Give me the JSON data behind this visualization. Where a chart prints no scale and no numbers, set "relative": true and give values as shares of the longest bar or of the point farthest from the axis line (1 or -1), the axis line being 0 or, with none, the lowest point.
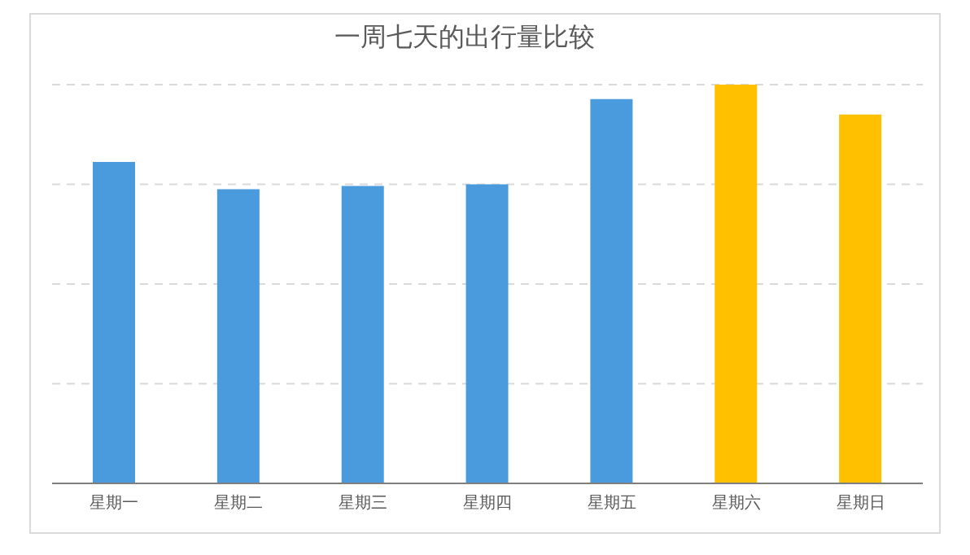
{
  "chart_data": {
    "type": "bar",
    "title": "一周七天的出行量比较",
    "categories": [
      "星期一",
      "星期二",
      "星期三",
      "星期四",
      "星期五",
      "星期六",
      "星期日"
    ],
    "values": [
      0.806,
      0.738,
      0.746,
      0.75,
      0.964,
      1,
      0.925
    ],
    "colors": [
      "#4a9ade",
      "#4a9ade",
      "#4a9ade",
      "#4a9ade",
      "#4a9ade",
      "#ffc000",
      "#ffc000"
    ],
    "relative": true,
    "grid": "y"
  }
}
